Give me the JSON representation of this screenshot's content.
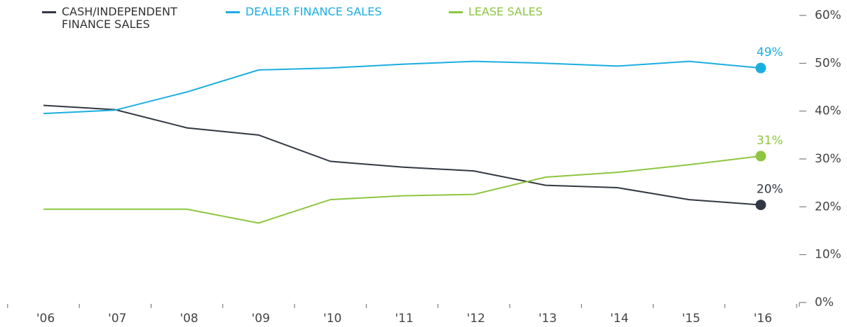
{
  "chart_data": {
    "type": "line",
    "categories": [
      "'06",
      "'07",
      "'08",
      "'09",
      "'10",
      "'11",
      "'12",
      "'13",
      "'14",
      "'15",
      "'16"
    ],
    "series": [
      {
        "name": "CASH/INDEPENDENT FINANCE SALES",
        "color": "#323843",
        "values": [
          41.2,
          40.3,
          36.5,
          35,
          29.5,
          28.3,
          27.5,
          24.5,
          24,
          21.5,
          20.4
        ],
        "value_labels": [
          null,
          null,
          null,
          null,
          null,
          null,
          null,
          null,
          null,
          null,
          "20%"
        ]
      },
      {
        "name": "DEALER FINANCE SALES",
        "color": "#1aaee0",
        "values": [
          39.5,
          40.2,
          44,
          48.6,
          49,
          49.8,
          50.4,
          50,
          49.4,
          50.4,
          49
        ],
        "value_labels": [
          null,
          null,
          null,
          null,
          null,
          null,
          null,
          null,
          null,
          null,
          "49%"
        ]
      },
      {
        "name": "LEASE SALES",
        "color": "#8dc63f",
        "values": [
          19.5,
          19.5,
          19.5,
          16.6,
          21.5,
          22.3,
          22.6,
          26.2,
          27.2,
          28.8,
          30.6
        ],
        "value_labels": [
          null,
          null,
          null,
          null,
          null,
          null,
          null,
          null,
          null,
          null,
          "31%"
        ]
      }
    ],
    "ylim": [
      0,
      60
    ],
    "yticks": [
      {
        "value": 0,
        "label": "0%"
      },
      {
        "value": 10,
        "label": "10%"
      },
      {
        "value": 20,
        "label": "20%"
      },
      {
        "value": 30,
        "label": "30%"
      },
      {
        "value": 40,
        "label": "40%"
      },
      {
        "value": 50,
        "label": "50%"
      },
      {
        "value": 60,
        "label": "60%"
      }
    ]
  }
}
